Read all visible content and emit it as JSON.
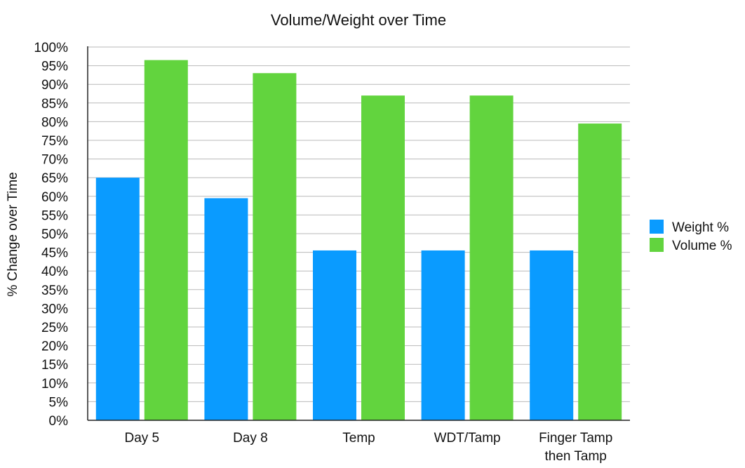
{
  "chart_data": {
    "type": "bar",
    "title": "Volume/Weight over Time",
    "xlabel": "",
    "ylabel": "% Change over Time",
    "ylim": [
      0,
      100
    ],
    "ytick_step": 5,
    "ytick_suffix": "%",
    "grid": true,
    "legend_position": "right",
    "categories": [
      [
        "Day 5"
      ],
      [
        "Day 8"
      ],
      [
        "Temp"
      ],
      [
        "WDT/Tamp"
      ],
      [
        "Finger Tamp",
        "then Tamp"
      ]
    ],
    "series": [
      {
        "name": "Weight %",
        "color": "#0a9bff",
        "values": [
          65,
          59.5,
          45.5,
          45.5,
          45.5
        ]
      },
      {
        "name": "Volume %",
        "color": "#62d43e",
        "values": [
          96.5,
          93,
          87,
          87,
          79.5
        ]
      }
    ]
  }
}
